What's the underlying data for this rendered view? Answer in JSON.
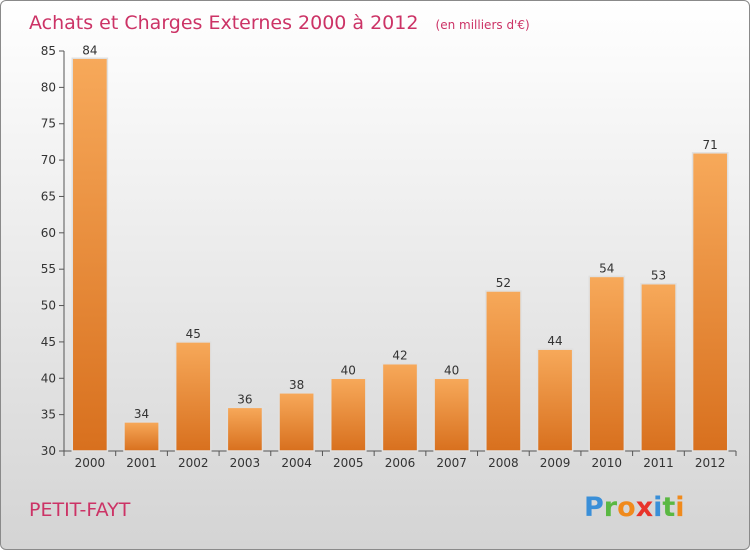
{
  "chart_data": {
    "type": "bar",
    "title": "Achats et Charges Externes 2000 à 2012",
    "subtitle": "(en milliers d'€)",
    "categories": [
      "2000",
      "2001",
      "2002",
      "2003",
      "2004",
      "2005",
      "2006",
      "2007",
      "2008",
      "2009",
      "2010",
      "2011",
      "2012"
    ],
    "values": [
      84,
      34,
      45,
      36,
      38,
      40,
      42,
      40,
      52,
      44,
      54,
      53,
      71
    ],
    "ylim": [
      30,
      85
    ],
    "yticks": [
      30,
      35,
      40,
      45,
      50,
      55,
      60,
      65,
      70,
      75,
      80,
      85
    ],
    "grid": false,
    "bar_color": "#f0953a"
  },
  "place": "PETIT-FAYT",
  "logo": {
    "letters": [
      "P",
      "r",
      "o",
      "x",
      "i",
      "t",
      "i"
    ],
    "colors": [
      "#3a8fd8",
      "#5ab842",
      "#f08a1c",
      "#e8332a",
      "#3a8fd8",
      "#5ab842",
      "#f08a1c"
    ]
  }
}
